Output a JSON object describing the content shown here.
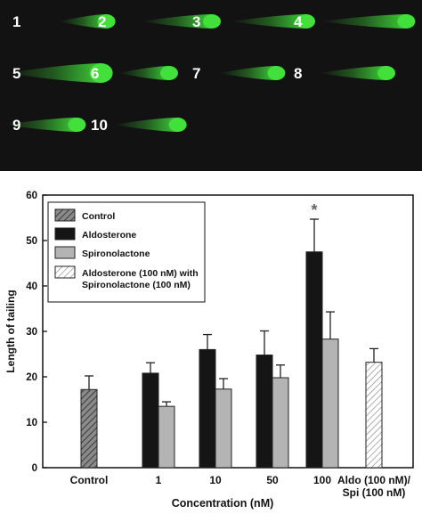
{
  "panel": {
    "background": "#121212",
    "comet_color": "#41e03a",
    "label_color": "#ffffff",
    "comets": [
      {
        "label": "1",
        "tail": 0.3
      },
      {
        "label": "2",
        "tail": 0.65
      },
      {
        "label": "3",
        "tail": 0.72
      },
      {
        "label": "4",
        "tail": 0.88
      },
      {
        "label": "5",
        "tail": 1.0
      },
      {
        "label": "6",
        "tail": 0.35
      },
      {
        "label": "7",
        "tail": 0.45
      },
      {
        "label": "8",
        "tail": 0.6
      },
      {
        "label": "9",
        "tail": 0.68
      },
      {
        "label": "10",
        "tail": 0.55
      }
    ]
  },
  "chart_data": {
    "type": "bar",
    "xlabel": "Concentration (nM)",
    "ylabel": "Length of tailing",
    "ylim": [
      0,
      60
    ],
    "yticks": [
      "0",
      "10",
      "20",
      "30",
      "40",
      "50",
      "60"
    ],
    "grid": false,
    "legend_position": "top-left",
    "categories": [
      "Control",
      "1",
      "10",
      "50",
      "100",
      "Aldo (100 nM)/ Spi (100 nM)"
    ],
    "category_label_lines": [
      [
        "Control"
      ],
      [
        "1"
      ],
      [
        "10"
      ],
      [
        "50"
      ],
      [
        "100"
      ],
      [
        "Aldo (100 nM)/",
        "Spi   (100 nM)"
      ]
    ],
    "series": [
      {
        "name": "Control",
        "style": "hatched-gray",
        "fill": "#8a8a8a",
        "values": [
          17.2,
          null,
          null,
          null,
          null,
          null
        ],
        "errors": [
          3.0,
          null,
          null,
          null,
          null,
          null
        ]
      },
      {
        "name": "Aldosterone",
        "style": "solid",
        "fill": "#151515",
        "values": [
          null,
          20.8,
          26.0,
          24.8,
          47.5,
          null
        ],
        "errors": [
          null,
          2.3,
          3.3,
          5.3,
          7.2,
          null
        ]
      },
      {
        "name": "Spironolactone",
        "style": "solid",
        "fill": "#b4b4b4",
        "values": [
          null,
          13.5,
          17.3,
          19.8,
          28.3,
          null
        ],
        "errors": [
          null,
          1.0,
          2.3,
          2.8,
          6.0,
          null
        ]
      },
      {
        "name": "Aldosterone (100 nM) with Spironolactone (100 nM)",
        "style": "hatched-white",
        "fill": "#ffffff",
        "values": [
          null,
          null,
          null,
          null,
          null,
          23.2
        ],
        "errors": [
          null,
          null,
          null,
          null,
          null,
          3.0
        ]
      }
    ],
    "legend_lines": [
      [
        "Control"
      ],
      [
        "Aldosterone"
      ],
      [
        "Spironolactone"
      ],
      [
        "Aldosterone (100 nM) with",
        "Spironolactone (100 nM)"
      ]
    ],
    "annotations": [
      {
        "text": "*",
        "category": "100",
        "series": "Aldosterone"
      }
    ]
  }
}
